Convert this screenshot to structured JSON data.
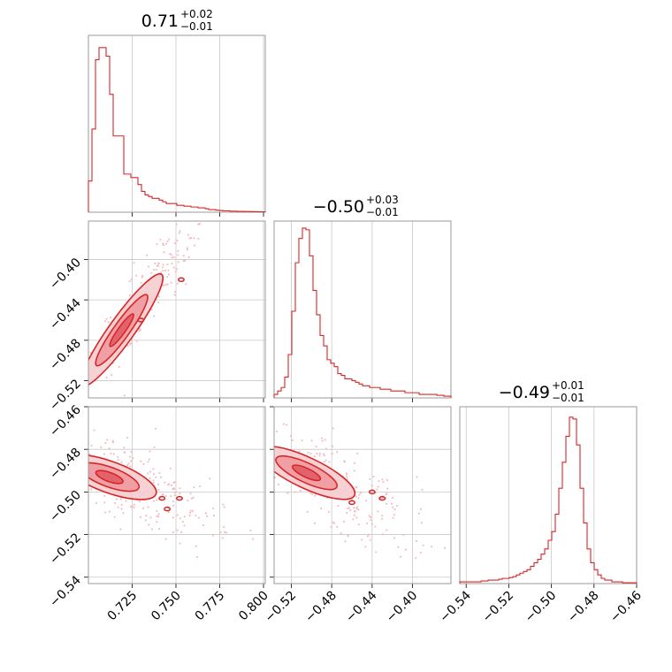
{
  "colors": {
    "accent": "#d62728",
    "fill_light": "#f6cdd0",
    "fill_mid": "#ee9aa0",
    "fill_dark": "#e05c66",
    "scatter": "#f4b6bb",
    "grid": "#c8c8c8",
    "frame": "#9a9a9a"
  },
  "chart_data": {
    "type": "corner",
    "params": [
      {
        "id": "p0",
        "title": {
          "median": "0.71",
          "plus": "+0.02",
          "minus": "−0.01"
        },
        "range": [
          0.7,
          0.801
        ],
        "ticks": [
          0.725,
          0.75,
          0.775,
          0.8
        ],
        "tick_labels": [
          "0.725",
          "0.750",
          "0.775",
          "0.800"
        ],
        "hist": [
          0.18,
          0.48,
          0.88,
          0.95,
          0.95,
          0.9,
          0.68,
          0.44,
          0.44,
          0.44,
          0.22,
          0.22,
          0.2,
          0.2,
          0.16,
          0.12,
          0.1,
          0.09,
          0.08,
          0.08,
          0.07,
          0.06,
          0.05,
          0.05,
          0.05,
          0.04,
          0.04,
          0.035,
          0.035,
          0.03,
          0.03,
          0.025,
          0.025,
          0.02,
          0.015,
          0.015,
          0.012,
          0.01,
          0.008,
          0.008,
          0.006,
          0.006,
          0.005,
          0.005,
          0.004,
          0.004,
          0.003,
          0.003,
          0.002,
          0.002
        ]
      },
      {
        "id": "p1",
        "title": {
          "median": "−0.50",
          "plus": "+0.03",
          "minus": "−0.01"
        },
        "range": [
          -0.537,
          -0.362
        ],
        "ticks": [
          -0.52,
          -0.48,
          -0.44,
          -0.4
        ],
        "tick_labels": [
          "−0.52",
          "−0.48",
          "−0.44",
          "−0.40"
        ],
        "hist": [
          0.02,
          0.04,
          0.06,
          0.12,
          0.25,
          0.5,
          0.78,
          0.92,
          0.98,
          0.97,
          0.82,
          0.62,
          0.48,
          0.36,
          0.3,
          0.22,
          0.2,
          0.18,
          0.14,
          0.13,
          0.11,
          0.11,
          0.1,
          0.09,
          0.08,
          0.07,
          0.07,
          0.06,
          0.06,
          0.06,
          0.05,
          0.05,
          0.05,
          0.04,
          0.04,
          0.04,
          0.04,
          0.03,
          0.03,
          0.03,
          0.03,
          0.02,
          0.02,
          0.02,
          0.02,
          0.02,
          0.015,
          0.015,
          0.01,
          0.01
        ]
      },
      {
        "id": "p2",
        "title": {
          "median": "−0.49",
          "plus": "+0.01",
          "minus": "−0.01"
        },
        "range": [
          -0.543,
          -0.46
        ],
        "ticks": [
          -0.54,
          -0.52,
          -0.5,
          -0.48,
          -0.46
        ],
        "tick_labels": [
          "−0.54",
          "−0.52",
          "−0.50",
          "−0.48",
          "−0.46"
        ],
        "hist": [
          0.01,
          0.01,
          0.01,
          0.01,
          0.01,
          0.01,
          0.015,
          0.015,
          0.02,
          0.02,
          0.02,
          0.025,
          0.03,
          0.03,
          0.035,
          0.04,
          0.05,
          0.06,
          0.07,
          0.08,
          0.1,
          0.12,
          0.14,
          0.17,
          0.2,
          0.25,
          0.3,
          0.4,
          0.55,
          0.7,
          0.85,
          0.96,
          0.95,
          0.8,
          0.55,
          0.35,
          0.2,
          0.12,
          0.08,
          0.05,
          0.03,
          0.02,
          0.02,
          0.01,
          0.01,
          0.01,
          0.005,
          0.005,
          0.005,
          0.005
        ]
      }
    ],
    "pairs": [
      {
        "x": 0,
        "y": 1,
        "center": [
          0.719,
          -0.47
        ],
        "sigma": [
          0.012,
          0.03
        ],
        "rho": 0.97,
        "pts": 260,
        "islands": [
          [
            0.753,
            -0.42
          ],
          [
            0.73,
            -0.46
          ]
        ]
      },
      {
        "x": 0,
        "y": 2,
        "center": [
          0.712,
          -0.493
        ],
        "sigma": [
          0.014,
          0.006
        ],
        "rho": -0.7,
        "pts": 260,
        "islands": [
          [
            0.742,
            -0.503
          ],
          [
            0.752,
            -0.503
          ],
          [
            0.745,
            -0.508
          ]
        ]
      },
      {
        "x": 1,
        "y": 2,
        "center": [
          -0.505,
          -0.491
        ],
        "sigma": [
          0.025,
          0.007
        ],
        "rho": -0.8,
        "pts": 260,
        "islands": [
          [
            -0.44,
            -0.5
          ],
          [
            -0.43,
            -0.503
          ],
          [
            -0.46,
            -0.505
          ]
        ]
      }
    ]
  }
}
